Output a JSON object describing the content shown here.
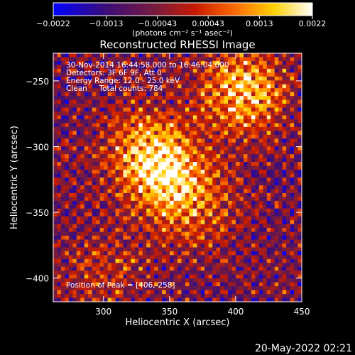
{
  "chart_data": {
    "type": "heatmap",
    "title": "Reconstructed RHESSI Image",
    "xlabel": "Heliocentric X (arcsec)",
    "ylabel": "Heliocentric Y (arcsec)",
    "xlim": [
      262,
      450
    ],
    "ylim": [
      -418,
      -229
    ],
    "x_ticks": [
      300,
      350,
      400,
      450
    ],
    "y_ticks": [
      -250,
      -300,
      -350,
      -400
    ],
    "x_tick_labels": [
      "300",
      "350",
      "400",
      "450"
    ],
    "y_tick_labels": [
      "−250",
      "−300",
      "−350",
      "−400"
    ],
    "colorbar": {
      "range": [
        -0.0022,
        0.0022
      ],
      "tick_labels": [
        "−0.0022",
        "−0.0013",
        "−0.00043",
        "0.00043",
        "0.0013",
        "0.0022"
      ],
      "tick_values": [
        -0.0022,
        -0.0013,
        -0.00043,
        0.00043,
        0.0013,
        0.0022
      ],
      "unit_label": "(photons cm⁻² s⁻¹ asec⁻²)",
      "colors": [
        "#0000ff",
        "#3a0d7a",
        "#7a1c3c",
        "#c81a00",
        "#ff6a00",
        "#ffd000",
        "#ffffff"
      ]
    },
    "annotations": {
      "time_range": "30-Nov-2014 16:44:58.000 to 16:46:04.000",
      "detectors": "Detectors: 3F 6F 9F, Att 0",
      "energy": "Energy Range: 12.0 - 25.0 keV",
      "clean": "Clean     Total counts: 784",
      "peak": "Position of Peak = [406,-258]"
    },
    "peak_position": [
      406,
      -258
    ],
    "sources": [
      {
        "x": 348,
        "y": -322,
        "value": 0.002
      },
      {
        "x": 406,
        "y": -258,
        "value": 0.0022
      },
      {
        "x": 330,
        "y": -300,
        "value": 0.0014
      },
      {
        "x": 372,
        "y": -350,
        "value": 0.001
      },
      {
        "x": 300,
        "y": -395,
        "value": 0.0008
      }
    ],
    "grid": false
  },
  "footer": {
    "date": "20-May-2022 02:21"
  }
}
